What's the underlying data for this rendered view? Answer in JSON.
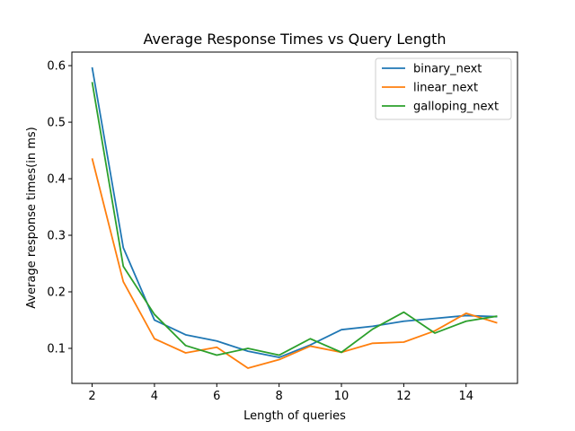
{
  "chart_data": {
    "type": "line",
    "title": "Average Response Times vs Query Length",
    "xlabel": "Length of queries",
    "ylabel": "Average response times(in ms)",
    "xlim": [
      1.35,
      15.65
    ],
    "ylim": [
      0.038,
      0.624
    ],
    "xticks": [
      2,
      4,
      6,
      8,
      10,
      12,
      14
    ],
    "yticks": [
      0.1,
      0.2,
      0.3,
      0.4,
      0.5,
      0.6
    ],
    "x": [
      2,
      3,
      4,
      5,
      6,
      7,
      8,
      9,
      10,
      11,
      12,
      13,
      14,
      15
    ],
    "series": [
      {
        "name": "binary_next",
        "color": "#1f77b4",
        "values": [
          0.597,
          0.278,
          0.15,
          0.124,
          0.113,
          0.095,
          0.084,
          0.106,
          0.133,
          0.139,
          0.148,
          0.153,
          0.158,
          0.156
        ]
      },
      {
        "name": "linear_next",
        "color": "#ff7f0e",
        "values": [
          0.436,
          0.218,
          0.117,
          0.092,
          0.102,
          0.065,
          0.08,
          0.104,
          0.093,
          0.109,
          0.111,
          0.131,
          0.162,
          0.145
        ]
      },
      {
        "name": "galloping_next",
        "color": "#2ca02c",
        "values": [
          0.571,
          0.245,
          0.16,
          0.105,
          0.088,
          0.1,
          0.088,
          0.117,
          0.093,
          0.134,
          0.164,
          0.127,
          0.148,
          0.157
        ]
      }
    ],
    "legend": {
      "position": "top-right"
    },
    "grid": false
  }
}
